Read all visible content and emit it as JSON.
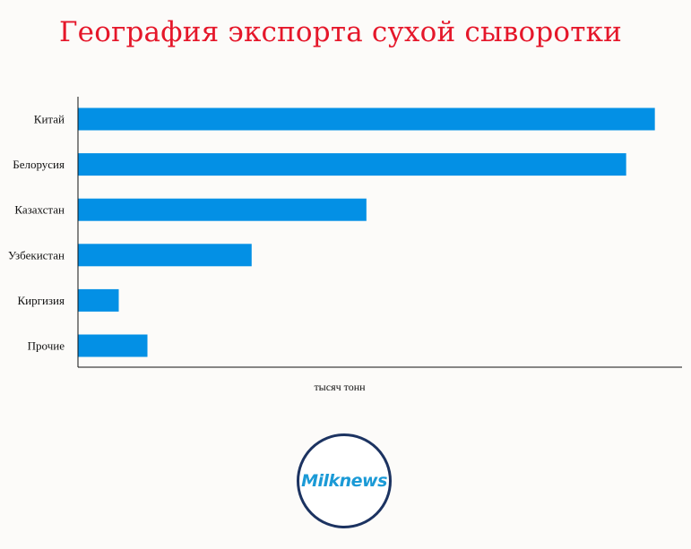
{
  "chart_data": {
    "type": "bar",
    "orientation": "horizontal",
    "title": "География экспорта сухой сыворотки",
    "xlabel": "тысяч тонн",
    "ylabel": "",
    "categories": [
      "Китай",
      "Белорусия",
      "Казахстан",
      "Узбекистан",
      "Киргизия",
      "Прочие"
    ],
    "values": [
      19.1,
      18.15,
      9.55,
      5.75,
      1.35,
      2.3
    ],
    "xlim": [
      0,
      20
    ],
    "grid": false,
    "legend": "none",
    "bar_color": "#0390e5"
  },
  "logo": {
    "text": "Milknews"
  }
}
